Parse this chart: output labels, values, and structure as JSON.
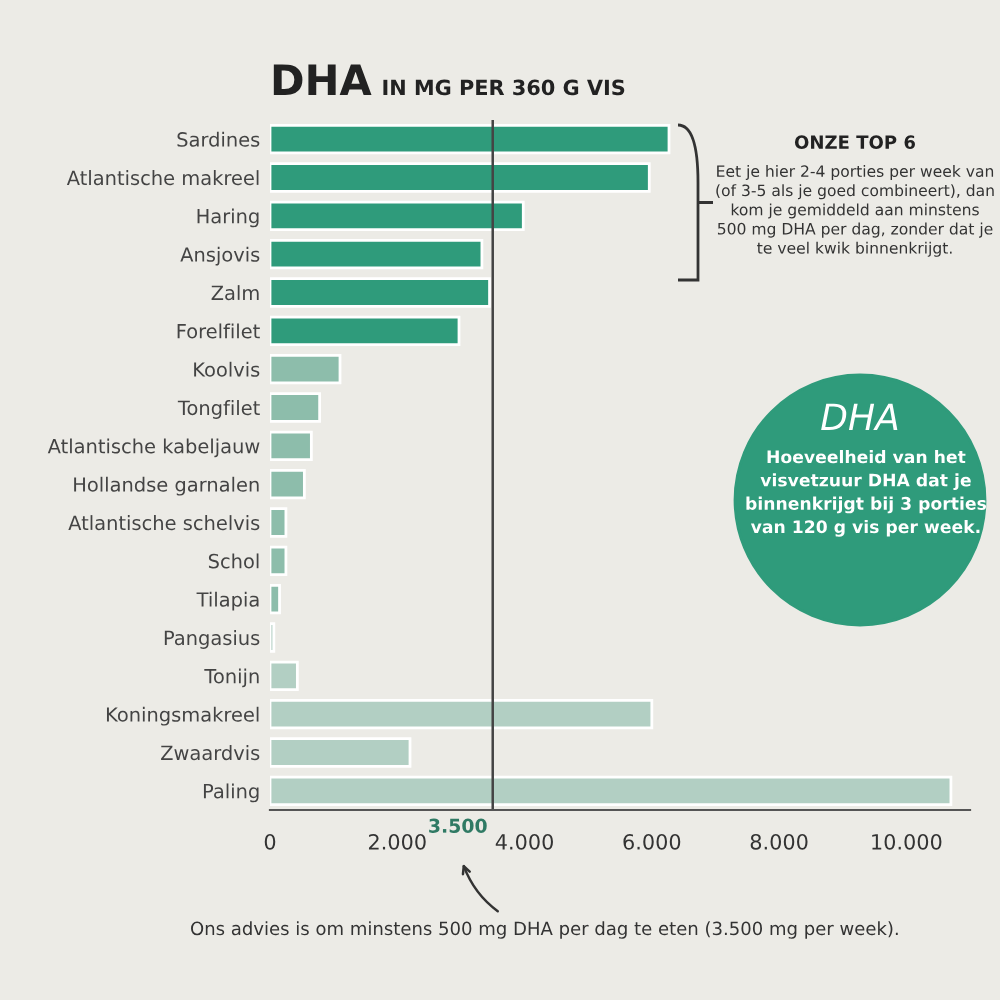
{
  "chart_data": {
    "type": "bar",
    "orientation": "horizontal",
    "title": "DHA",
    "subtitle": "IN MG PER 360 G VIS",
    "categories": [
      "Sardines",
      "Atlantische makreel",
      "Haring",
      "Ansjovis",
      "Zalm",
      "Forelfilet",
      "Koolvis",
      "Tongfilet",
      "Atlantische kabeljauw",
      "Hollandse garnalen",
      "Atlantische schelvis",
      "Schol",
      "Tilapia",
      "Pangasius",
      "Tonijn",
      "Koningsmakreel",
      "Zwaardvis",
      "Paling"
    ],
    "values": [
      6270,
      5960,
      3980,
      3330,
      3450,
      2970,
      1100,
      780,
      650,
      540,
      250,
      250,
      150,
      60,
      430,
      6000,
      2200,
      10700
    ],
    "colors": [
      "#2f9b7b",
      "#2f9b7b",
      "#2f9b7b",
      "#2f9b7b",
      "#2f9b7b",
      "#2f9b7b",
      "#8dbdab",
      "#8dbdab",
      "#8dbdab",
      "#8dbdab",
      "#8dbdab",
      "#8dbdab",
      "#8dbdab",
      "#b2cfc3",
      "#b2cfc3",
      "#b2cfc3",
      "#b2cfc3",
      "#b2cfc3"
    ],
    "xlim": [
      0,
      11000
    ],
    "xticks": [
      0,
      {
        "value": 2000,
        "label": "2.000"
      },
      {
        "value": 4000,
        "label": "4.000"
      },
      {
        "value": 6000,
        "label": "6.000"
      },
      {
        "value": 8000,
        "label": "8.000"
      },
      {
        "value": 10000,
        "label": "10.000"
      }
    ],
    "ref_lines": [
      {
        "axis": "x",
        "value": 3500,
        "label": "3.500"
      }
    ],
    "annotations": [
      "ONZE TOP 6",
      "Eet je hier 2-4 porties per week van (of 3-5 als je goed combineert), dan kom je gemiddeld aan minstens 500 mg DHA per dag, zonder dat je te veel kwik binnenkrijgt.",
      "DHA",
      "Hoeveelheid van het visvetzuur DHA dat je binnenkrijgt bij 3 porties van 120 g vis per week.",
      "Ons advies is om minstens 500 mg DHA per dag te eten (3.500 mg per week)."
    ],
    "grid": false
  }
}
